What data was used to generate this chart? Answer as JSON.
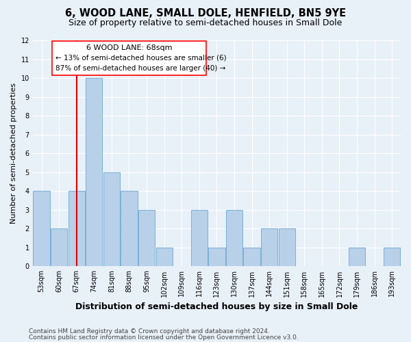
{
  "title": "6, WOOD LANE, SMALL DOLE, HENFIELD, BN5 9YE",
  "subtitle": "Size of property relative to semi-detached houses in Small Dole",
  "xlabel": "Distribution of semi-detached houses by size in Small Dole",
  "ylabel": "Number of semi-detached properties",
  "categories": [
    "53sqm",
    "60sqm",
    "67sqm",
    "74sqm",
    "81sqm",
    "88sqm",
    "95sqm",
    "102sqm",
    "109sqm",
    "116sqm",
    "123sqm",
    "130sqm",
    "137sqm",
    "144sqm",
    "151sqm",
    "158sqm",
    "165sqm",
    "172sqm",
    "179sqm",
    "186sqm",
    "193sqm"
  ],
  "values": [
    4,
    2,
    4,
    10,
    5,
    4,
    3,
    1,
    0,
    3,
    1,
    3,
    1,
    2,
    2,
    0,
    0,
    0,
    1,
    0,
    1
  ],
  "bar_color": "#b8d0e8",
  "bar_edge_color": "#6aaad4",
  "highlight_index": 2,
  "highlight_color": "#dd0000",
  "ylim": [
    0,
    12
  ],
  "yticks": [
    0,
    1,
    2,
    3,
    4,
    5,
    6,
    7,
    8,
    9,
    10,
    11,
    12
  ],
  "annotation_title": "6 WOOD LANE: 68sqm",
  "annotation_line1": "← 13% of semi-detached houses are smaller (6)",
  "annotation_line2": "87% of semi-detached houses are larger (40) →",
  "footnote1": "Contains HM Land Registry data © Crown copyright and database right 2024.",
  "footnote2": "Contains public sector information licensed under the Open Government Licence v3.0.",
  "bg_color": "#e8f0f8",
  "fig_bg_color": "#e8f0f8",
  "grid_color": "#ffffff",
  "title_fontsize": 10.5,
  "subtitle_fontsize": 9,
  "xlabel_fontsize": 9,
  "ylabel_fontsize": 8,
  "tick_fontsize": 7,
  "annotation_title_fontsize": 8,
  "annotation_text_fontsize": 7.5,
  "footnote_fontsize": 6.5
}
